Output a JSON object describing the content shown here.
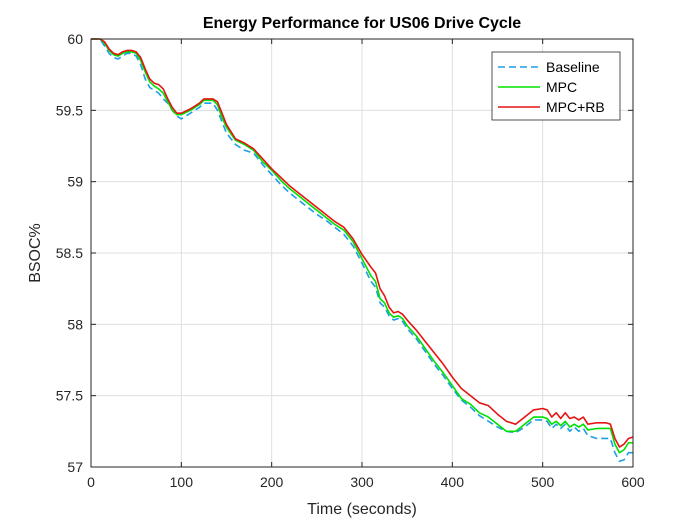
{
  "chart_data": {
    "type": "line",
    "title": "Energy Performance for US06 Drive Cycle",
    "xlabel": "Time (seconds)",
    "ylabel": "BSOC%",
    "xlim": [
      0,
      600
    ],
    "ylim": [
      57,
      60
    ],
    "xticks": [
      0,
      100,
      200,
      300,
      400,
      500,
      600
    ],
    "yticks": [
      57,
      57.5,
      58,
      58.5,
      59,
      59.5,
      60
    ],
    "xtick_labels": [
      "0",
      "100",
      "200",
      "300",
      "400",
      "500",
      "600"
    ],
    "ytick_labels": [
      "57",
      "57.5",
      "58",
      "58.5",
      "59",
      "59.5",
      "60"
    ],
    "grid": true,
    "legend_position": "top-right",
    "series": [
      {
        "name": "Baseline",
        "color": "#1e9ee6",
        "style": "dashed",
        "x": [
          0,
          10,
          15,
          20,
          25,
          30,
          35,
          40,
          45,
          50,
          55,
          60,
          65,
          70,
          75,
          80,
          85,
          90,
          95,
          100,
          110,
          120,
          125,
          130,
          135,
          140,
          145,
          150,
          160,
          170,
          180,
          190,
          200,
          210,
          220,
          230,
          240,
          250,
          260,
          270,
          280,
          290,
          300,
          310,
          315,
          320,
          325,
          330,
          335,
          340,
          345,
          350,
          360,
          370,
          380,
          390,
          400,
          410,
          420,
          430,
          440,
          450,
          460,
          470,
          480,
          490,
          500,
          505,
          510,
          515,
          520,
          525,
          530,
          535,
          540,
          545,
          550,
          560,
          570,
          575,
          580,
          585,
          590,
          595,
          600
        ],
        "y": [
          60,
          60,
          59.95,
          59.9,
          59.87,
          59.86,
          59.88,
          59.9,
          59.9,
          59.88,
          59.82,
          59.72,
          59.66,
          59.64,
          59.62,
          59.58,
          59.55,
          59.5,
          59.46,
          59.44,
          59.48,
          59.52,
          59.55,
          59.55,
          59.55,
          59.5,
          59.42,
          59.34,
          59.26,
          59.22,
          59.2,
          59.12,
          59.05,
          58.98,
          58.92,
          58.87,
          58.82,
          58.77,
          58.73,
          58.68,
          58.63,
          58.55,
          58.43,
          58.3,
          58.26,
          58.15,
          58.12,
          58.06,
          58.03,
          58.04,
          58.02,
          57.97,
          57.9,
          57.81,
          57.72,
          57.64,
          57.55,
          57.47,
          57.42,
          57.36,
          57.32,
          57.28,
          57.25,
          57.24,
          57.28,
          57.33,
          57.33,
          57.32,
          57.27,
          57.3,
          57.27,
          57.3,
          57.25,
          57.28,
          57.25,
          57.27,
          57.22,
          57.2,
          57.2,
          57.2,
          57.1,
          57.04,
          57.05,
          57.1,
          57.1
        ]
      },
      {
        "name": "MPC",
        "color": "#00e000",
        "style": "solid",
        "x": [
          0,
          10,
          15,
          20,
          25,
          30,
          35,
          40,
          45,
          50,
          55,
          60,
          65,
          70,
          75,
          80,
          85,
          90,
          95,
          100,
          110,
          120,
          125,
          130,
          135,
          140,
          145,
          150,
          160,
          170,
          180,
          190,
          200,
          210,
          220,
          230,
          240,
          250,
          260,
          270,
          280,
          290,
          300,
          310,
          315,
          320,
          325,
          330,
          335,
          340,
          345,
          350,
          360,
          370,
          380,
          390,
          400,
          410,
          420,
          430,
          440,
          450,
          460,
          470,
          480,
          490,
          500,
          505,
          510,
          515,
          520,
          525,
          530,
          535,
          540,
          545,
          550,
          560,
          570,
          575,
          580,
          585,
          590,
          595,
          600
        ],
        "y": [
          60,
          60,
          59.97,
          59.92,
          59.89,
          59.88,
          59.9,
          59.91,
          59.91,
          59.9,
          59.85,
          59.77,
          59.7,
          59.67,
          59.65,
          59.62,
          59.56,
          59.5,
          59.47,
          59.47,
          59.5,
          59.54,
          59.57,
          59.57,
          59.57,
          59.54,
          59.45,
          59.38,
          59.29,
          59.26,
          59.22,
          59.14,
          59.08,
          59.01,
          58.95,
          58.9,
          58.85,
          58.8,
          58.75,
          58.7,
          58.66,
          58.58,
          58.46,
          58.34,
          58.3,
          58.18,
          58.15,
          58.08,
          58.05,
          58.06,
          58.04,
          57.99,
          57.92,
          57.83,
          57.74,
          57.66,
          57.57,
          57.48,
          57.44,
          57.38,
          57.35,
          57.3,
          57.25,
          57.25,
          57.3,
          57.35,
          57.35,
          57.34,
          57.3,
          57.32,
          57.29,
          57.32,
          57.28,
          57.3,
          57.28,
          57.3,
          57.26,
          57.27,
          57.27,
          57.27,
          57.16,
          57.1,
          57.12,
          57.17,
          57.17
        ]
      },
      {
        "name": "MPC+RB",
        "color": "#e61414",
        "style": "solid",
        "x": [
          0,
          10,
          15,
          20,
          25,
          30,
          35,
          40,
          45,
          50,
          55,
          60,
          65,
          70,
          75,
          80,
          85,
          90,
          95,
          100,
          110,
          120,
          125,
          130,
          135,
          140,
          145,
          150,
          160,
          170,
          180,
          190,
          200,
          210,
          220,
          230,
          240,
          250,
          260,
          270,
          280,
          290,
          300,
          310,
          315,
          320,
          325,
          330,
          335,
          340,
          345,
          350,
          360,
          370,
          380,
          390,
          400,
          410,
          420,
          430,
          440,
          450,
          460,
          470,
          480,
          490,
          500,
          505,
          510,
          515,
          520,
          525,
          530,
          535,
          540,
          545,
          550,
          560,
          570,
          575,
          580,
          585,
          590,
          595,
          600
        ],
        "y": [
          60,
          60,
          59.98,
          59.93,
          59.9,
          59.89,
          59.91,
          59.92,
          59.92,
          59.91,
          59.87,
          59.79,
          59.72,
          59.69,
          59.68,
          59.65,
          59.58,
          59.52,
          59.48,
          59.48,
          59.51,
          59.55,
          59.58,
          59.58,
          59.58,
          59.56,
          59.48,
          59.4,
          59.3,
          59.27,
          59.23,
          59.16,
          59.09,
          59.03,
          58.97,
          58.92,
          58.87,
          58.82,
          58.77,
          58.72,
          58.68,
          58.6,
          58.49,
          58.4,
          58.36,
          58.25,
          58.2,
          58.12,
          58.08,
          58.09,
          58.07,
          58.03,
          57.96,
          57.88,
          57.8,
          57.72,
          57.63,
          57.55,
          57.5,
          57.45,
          57.43,
          57.37,
          57.32,
          57.3,
          57.35,
          57.4,
          57.41,
          57.4,
          57.35,
          57.38,
          57.34,
          57.38,
          57.34,
          57.35,
          57.33,
          57.35,
          57.3,
          57.31,
          57.31,
          57.3,
          57.2,
          57.14,
          57.16,
          57.2,
          57.21
        ]
      }
    ]
  }
}
